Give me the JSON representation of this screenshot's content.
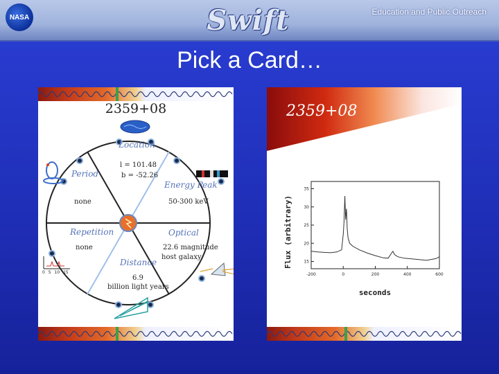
{
  "header": {
    "nasa_logo_text": "NASA",
    "brand_logo_text": "Swift",
    "outreach_text": "Education and Public Outreach"
  },
  "slide": {
    "title": "Pick a Card…"
  },
  "card_left": {
    "code": "2359+08",
    "sections": {
      "location": {
        "label": "Location",
        "line1": "l = 101.48",
        "line2": "b = -52.26"
      },
      "energy_peak": {
        "label": "Energy Peak",
        "value": "50-300 keV"
      },
      "optical": {
        "label": "Optical",
        "line1": "22.6 magnitude",
        "line2": "host galaxy"
      },
      "distance": {
        "label": "Distance",
        "line1": "6.9",
        "line2": "billion light years"
      },
      "repetition": {
        "label": "Repetition",
        "value": "none"
      },
      "period": {
        "label": "Period",
        "value": "none"
      }
    },
    "mini_axis_ticks": [
      "0",
      "5",
      "10",
      "15"
    ]
  },
  "card_right": {
    "code": "2359+08"
  },
  "chart_data": {
    "type": "line",
    "title": "",
    "xlabel": "seconds",
    "ylabel": "Flux (arbitrary)",
    "xlim": [
      -200,
      600
    ],
    "ylim": [
      13,
      37
    ],
    "x_ticks": [
      -200,
      0,
      200,
      400,
      600
    ],
    "y_ticks": [
      15,
      20,
      25,
      30,
      35
    ],
    "grid": false,
    "series": [
      {
        "x": [
          -200,
          -160,
          -120,
          -80,
          -40,
          -10,
          0,
          5,
          10,
          15,
          20,
          25,
          30,
          40,
          60,
          100,
          150,
          200,
          250,
          280,
          300,
          310,
          320,
          340,
          380,
          450,
          520,
          580,
          600
        ],
        "values": [
          17.8,
          17.6,
          17.5,
          17.4,
          17.6,
          18.2,
          22.5,
          26.0,
          33.0,
          26.5,
          29.5,
          24.0,
          21.5,
          20.0,
          19.2,
          18.2,
          17.3,
          16.6,
          16.0,
          15.9,
          17.2,
          17.8,
          16.9,
          16.3,
          15.9,
          15.6,
          15.3,
          15.8,
          16.3
        ]
      }
    ]
  }
}
